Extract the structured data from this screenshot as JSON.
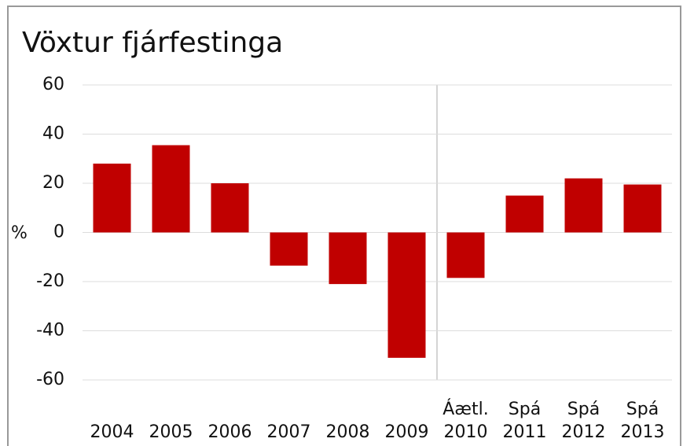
{
  "chart_data": {
    "type": "bar",
    "title": "Vöxtur fjárfestinga",
    "y_label": "%",
    "categories": [
      [
        "2004"
      ],
      [
        "2005"
      ],
      [
        "2006"
      ],
      [
        "2007"
      ],
      [
        "2008"
      ],
      [
        "2009"
      ],
      [
        "Áætl.",
        "2010"
      ],
      [
        "Spá",
        "2011"
      ],
      [
        "Spá",
        "2012"
      ],
      [
        "Spá",
        "2013"
      ]
    ],
    "values": [
      28,
      35.5,
      20,
      -13.5,
      -21,
      -51,
      -18.5,
      15,
      22,
      19.5
    ],
    "color": "#c00000",
    "ylim": [
      -60,
      60
    ],
    "yticks": [
      -60,
      -40,
      -20,
      0,
      20,
      40,
      60
    ],
    "grid": true
  }
}
